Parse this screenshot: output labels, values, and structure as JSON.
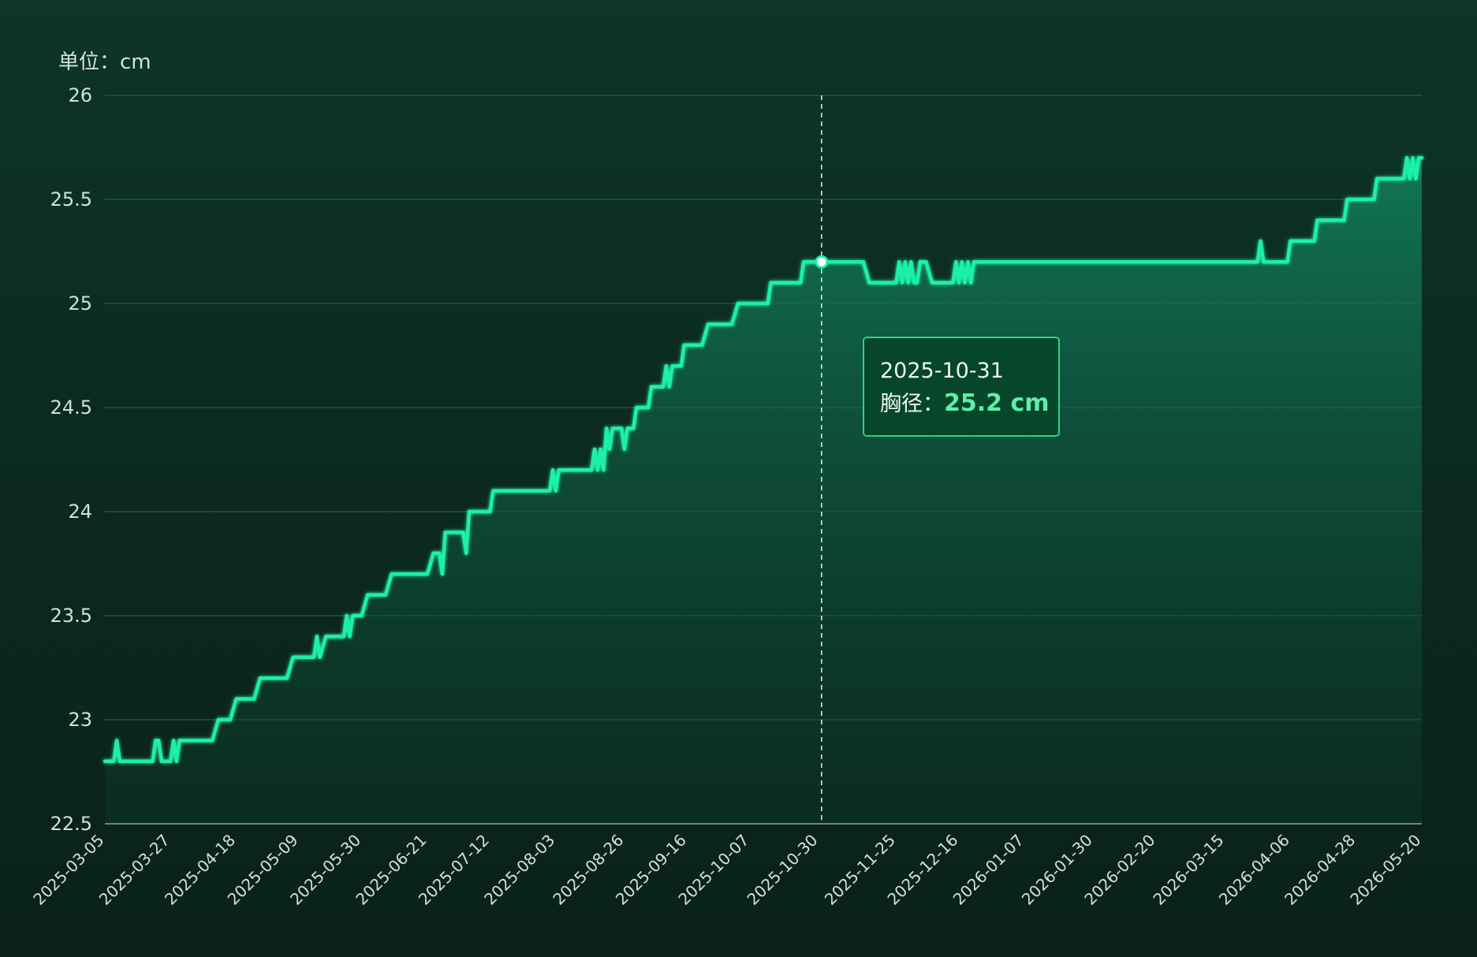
{
  "unit_label": "单位：cm",
  "tooltip": {
    "date": "2025-10-31",
    "series_label": "胸径：",
    "value_text": "25.2 cm"
  },
  "colors": {
    "background": "#0b2a20",
    "line": "#1ef0a6",
    "area_top": "#0f6a4e",
    "grid": "#2c5a48",
    "tooltip_border": "#2fd08a",
    "tooltip_value": "#5cf0a8"
  },
  "chart_data": {
    "type": "line",
    "title": "",
    "xlabel": "",
    "ylabel": "单位：cm",
    "grid": true,
    "area_fill": true,
    "ylim": [
      22.5,
      26
    ],
    "xlim": [
      "2025-03-05",
      "2026-05-20"
    ],
    "y_ticks": [
      "22.5",
      "23",
      "23.5",
      "24",
      "24.5",
      "25",
      "25.5",
      "26"
    ],
    "x_ticks": [
      "2025-03-05",
      "2025-03-27",
      "2025-04-18",
      "2025-05-09",
      "2025-05-30",
      "2025-06-21",
      "2025-07-12",
      "2025-08-03",
      "2025-08-26",
      "2025-09-16",
      "2025-10-07",
      "2025-10-30",
      "2025-11-25",
      "2025-12-16",
      "2026-01-07",
      "2026-01-30",
      "2026-02-20",
      "2026-03-15",
      "2026-04-06",
      "2026-04-28",
      "2026-05-20"
    ],
    "highlight": {
      "x": "2025-10-31",
      "y": 25.2
    },
    "series": [
      {
        "name": "胸径",
        "points": [
          [
            "2025-03-05",
            22.8
          ],
          [
            "2025-03-08",
            22.8
          ],
          [
            "2025-03-09",
            22.9
          ],
          [
            "2025-03-10",
            22.8
          ],
          [
            "2025-03-21",
            22.8
          ],
          [
            "2025-03-22",
            22.9
          ],
          [
            "2025-03-23",
            22.9
          ],
          [
            "2025-03-24",
            22.8
          ],
          [
            "2025-03-27",
            22.8
          ],
          [
            "2025-03-28",
            22.9
          ],
          [
            "2025-03-29",
            22.8
          ],
          [
            "2025-03-30",
            22.9
          ],
          [
            "2025-04-10",
            22.9
          ],
          [
            "2025-04-12",
            23.0
          ],
          [
            "2025-04-16",
            23.0
          ],
          [
            "2025-04-18",
            23.1
          ],
          [
            "2025-04-24",
            23.1
          ],
          [
            "2025-04-26",
            23.2
          ],
          [
            "2025-05-05",
            23.2
          ],
          [
            "2025-05-07",
            23.3
          ],
          [
            "2025-05-14",
            23.3
          ],
          [
            "2025-05-15",
            23.4
          ],
          [
            "2025-05-16",
            23.3
          ],
          [
            "2025-05-18",
            23.4
          ],
          [
            "2025-05-24",
            23.4
          ],
          [
            "2025-05-25",
            23.5
          ],
          [
            "2025-05-26",
            23.4
          ],
          [
            "2025-05-27",
            23.5
          ],
          [
            "2025-05-30",
            23.5
          ],
          [
            "2025-06-01",
            23.6
          ],
          [
            "2025-06-07",
            23.6
          ],
          [
            "2025-06-09",
            23.7
          ],
          [
            "2025-06-21",
            23.7
          ],
          [
            "2025-06-23",
            23.8
          ],
          [
            "2025-06-25",
            23.8
          ],
          [
            "2025-06-26",
            23.7
          ],
          [
            "2025-06-27",
            23.9
          ],
          [
            "2025-07-03",
            23.9
          ],
          [
            "2025-07-04",
            23.8
          ],
          [
            "2025-07-05",
            24.0
          ],
          [
            "2025-07-12",
            24.0
          ],
          [
            "2025-07-13",
            24.1
          ],
          [
            "2025-08-01",
            24.1
          ],
          [
            "2025-08-02",
            24.2
          ],
          [
            "2025-08-03",
            24.1
          ],
          [
            "2025-08-04",
            24.2
          ],
          [
            "2025-08-15",
            24.2
          ],
          [
            "2025-08-16",
            24.3
          ],
          [
            "2025-08-17",
            24.2
          ],
          [
            "2025-08-18",
            24.3
          ],
          [
            "2025-08-19",
            24.2
          ],
          [
            "2025-08-20",
            24.4
          ],
          [
            "2025-08-21",
            24.3
          ],
          [
            "2025-08-22",
            24.4
          ],
          [
            "2025-08-25",
            24.4
          ],
          [
            "2025-08-26",
            24.3
          ],
          [
            "2025-08-27",
            24.4
          ],
          [
            "2025-08-29",
            24.4
          ],
          [
            "2025-08-30",
            24.5
          ],
          [
            "2025-09-03",
            24.5
          ],
          [
            "2025-09-04",
            24.6
          ],
          [
            "2025-09-08",
            24.6
          ],
          [
            "2025-09-09",
            24.7
          ],
          [
            "2025-09-10",
            24.6
          ],
          [
            "2025-09-11",
            24.7
          ],
          [
            "2025-09-14",
            24.7
          ],
          [
            "2025-09-15",
            24.8
          ],
          [
            "2025-09-21",
            24.8
          ],
          [
            "2025-09-23",
            24.9
          ],
          [
            "2025-10-01",
            24.9
          ],
          [
            "2025-10-03",
            25.0
          ],
          [
            "2025-10-13",
            25.0
          ],
          [
            "2025-10-14",
            25.1
          ],
          [
            "2025-10-24",
            25.1
          ],
          [
            "2025-10-25",
            25.2
          ],
          [
            "2025-10-31",
            25.2
          ],
          [
            "2025-11-14",
            25.2
          ],
          [
            "2025-11-16",
            25.1
          ],
          [
            "2025-11-25",
            25.1
          ],
          [
            "2025-11-26",
            25.2
          ],
          [
            "2025-11-27",
            25.1
          ],
          [
            "2025-11-28",
            25.2
          ],
          [
            "2025-11-29",
            25.1
          ],
          [
            "2025-11-30",
            25.2
          ],
          [
            "2025-12-01",
            25.1
          ],
          [
            "2025-12-02",
            25.1
          ],
          [
            "2025-12-03",
            25.2
          ],
          [
            "2025-12-05",
            25.2
          ],
          [
            "2025-12-07",
            25.1
          ],
          [
            "2025-12-14",
            25.1
          ],
          [
            "2025-12-15",
            25.2
          ],
          [
            "2025-12-16",
            25.1
          ],
          [
            "2025-12-17",
            25.2
          ],
          [
            "2025-12-18",
            25.1
          ],
          [
            "2025-12-19",
            25.2
          ],
          [
            "2025-12-20",
            25.1
          ],
          [
            "2025-12-21",
            25.2
          ],
          [
            "2026-03-26",
            25.2
          ],
          [
            "2026-03-27",
            25.3
          ],
          [
            "2026-03-28",
            25.2
          ],
          [
            "2026-04-05",
            25.2
          ],
          [
            "2026-04-06",
            25.3
          ],
          [
            "2026-04-14",
            25.3
          ],
          [
            "2026-04-15",
            25.4
          ],
          [
            "2026-04-24",
            25.4
          ],
          [
            "2026-04-25",
            25.5
          ],
          [
            "2026-05-04",
            25.5
          ],
          [
            "2026-05-05",
            25.6
          ],
          [
            "2026-05-14",
            25.6
          ],
          [
            "2026-05-15",
            25.7
          ],
          [
            "2026-05-16",
            25.6
          ],
          [
            "2026-05-17",
            25.7
          ],
          [
            "2026-05-18",
            25.6
          ],
          [
            "2026-05-19",
            25.7
          ],
          [
            "2026-05-20",
            25.7
          ]
        ]
      }
    ]
  }
}
